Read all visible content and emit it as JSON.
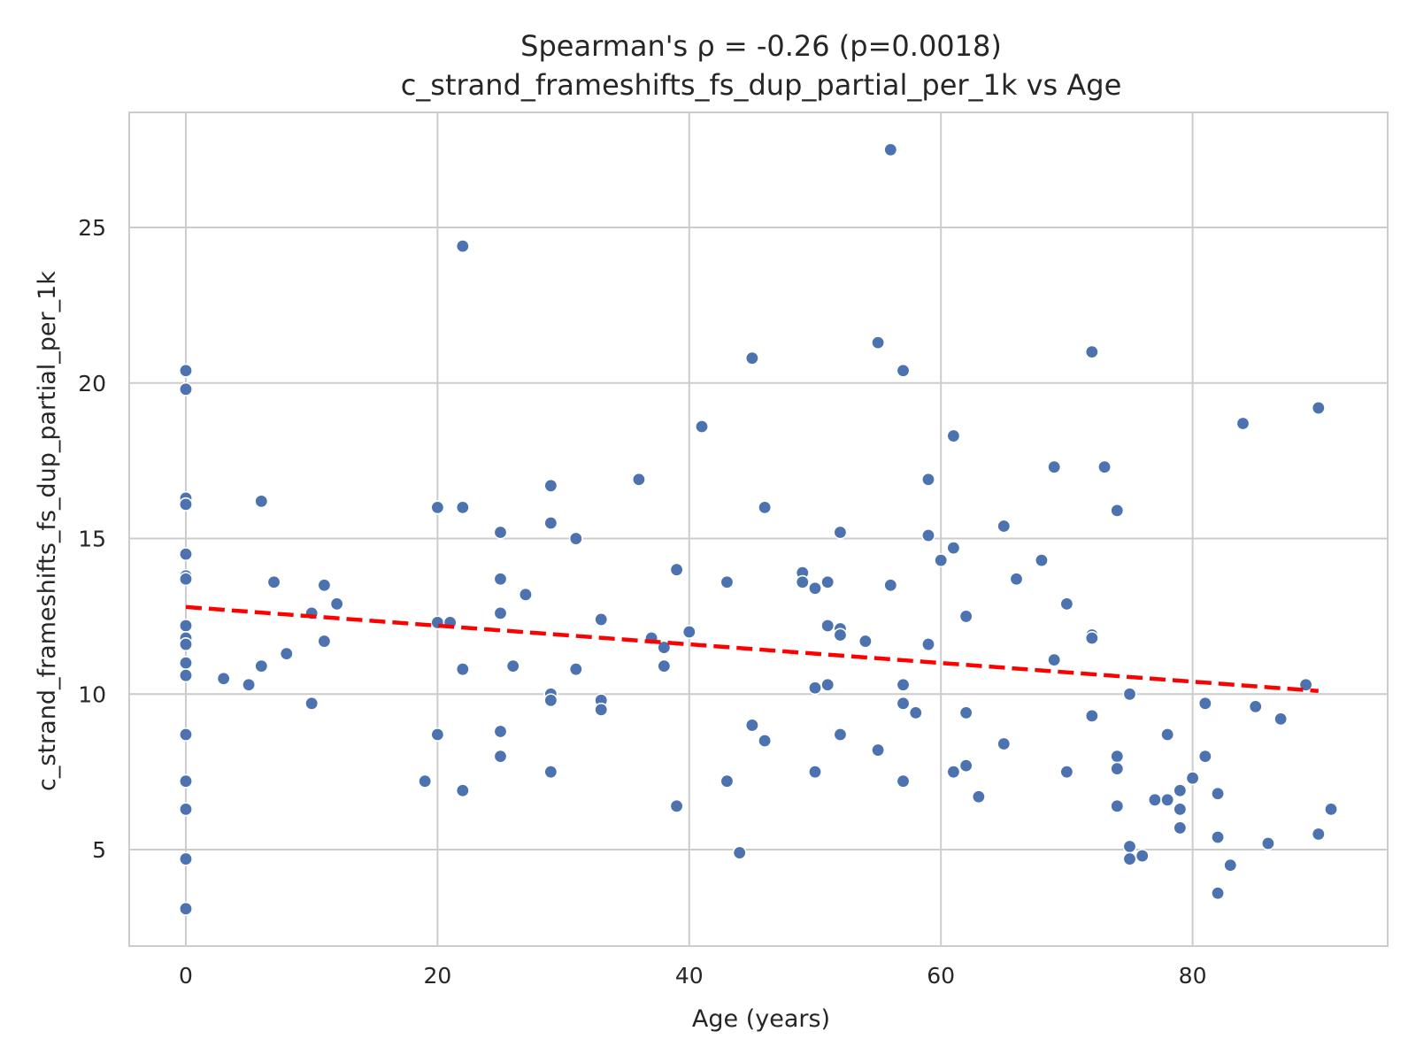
{
  "chart_data": {
    "type": "scatter",
    "title": "Spearman's ρ = -0.26 (p=0.0018)",
    "subtitle": "c_strand_frameshifts_fs_dup_partial_per_1k vs Age",
    "xlabel": "Age (years)",
    "ylabel": "c_strand_frameshifts_fs_dup_partial_per_1k",
    "xlim": [
      -4.5,
      95.5
    ],
    "ylim": [
      1.9,
      28.7
    ],
    "xticks": [
      0,
      20,
      40,
      60,
      80
    ],
    "yticks": [
      5,
      10,
      15,
      20,
      25
    ],
    "grid": true,
    "colors": {
      "points": "#4c72b0",
      "trend": "#ff0000",
      "grid": "#cccccc",
      "frame": "#cccccc"
    },
    "trend_line": {
      "style": "dashed",
      "x": [
        0,
        90
      ],
      "y": [
        12.8,
        10.1
      ]
    },
    "points": [
      [
        0,
        20.4
      ],
      [
        0,
        19.8
      ],
      [
        0,
        16.3
      ],
      [
        0,
        16.1
      ],
      [
        0,
        14.5
      ],
      [
        0,
        13.8
      ],
      [
        0,
        13.7
      ],
      [
        0,
        12.2
      ],
      [
        0,
        11.8
      ],
      [
        0,
        11.6
      ],
      [
        0,
        11.0
      ],
      [
        0,
        10.6
      ],
      [
        0,
        8.7
      ],
      [
        0,
        7.2
      ],
      [
        0,
        6.3
      ],
      [
        0,
        4.7
      ],
      [
        0,
        3.1
      ],
      [
        3,
        10.5
      ],
      [
        5,
        10.3
      ],
      [
        6,
        16.2
      ],
      [
        6,
        10.9
      ],
      [
        7,
        13.6
      ],
      [
        8,
        11.3
      ],
      [
        10,
        12.6
      ],
      [
        10,
        9.7
      ],
      [
        11,
        13.5
      ],
      [
        11,
        11.7
      ],
      [
        12,
        12.9
      ],
      [
        19,
        7.2
      ],
      [
        20,
        16.0
      ],
      [
        20,
        12.3
      ],
      [
        20,
        8.7
      ],
      [
        21,
        12.3
      ],
      [
        22,
        24.4
      ],
      [
        22,
        16.0
      ],
      [
        22,
        10.8
      ],
      [
        22,
        6.9
      ],
      [
        25,
        15.2
      ],
      [
        25,
        13.7
      ],
      [
        25,
        12.6
      ],
      [
        25,
        8.8
      ],
      [
        25,
        8.0
      ],
      [
        26,
        10.9
      ],
      [
        27,
        13.2
      ],
      [
        29,
        16.7
      ],
      [
        29,
        15.5
      ],
      [
        29,
        10.0
      ],
      [
        29,
        9.8
      ],
      [
        29,
        7.5
      ],
      [
        31,
        15.0
      ],
      [
        31,
        10.8
      ],
      [
        33,
        12.4
      ],
      [
        33,
        9.8
      ],
      [
        33,
        9.5
      ],
      [
        36,
        16.9
      ],
      [
        37,
        11.8
      ],
      [
        38,
        11.5
      ],
      [
        38,
        10.9
      ],
      [
        39,
        14.0
      ],
      [
        39,
        6.4
      ],
      [
        40,
        12.0
      ],
      [
        41,
        18.6
      ],
      [
        43,
        13.6
      ],
      [
        43,
        7.2
      ],
      [
        44,
        4.9
      ],
      [
        45,
        20.8
      ],
      [
        45,
        9.0
      ],
      [
        46,
        16.0
      ],
      [
        46,
        8.5
      ],
      [
        49,
        13.9
      ],
      [
        49,
        13.6
      ],
      [
        50,
        13.4
      ],
      [
        50,
        10.2
      ],
      [
        50,
        7.5
      ],
      [
        51,
        13.6
      ],
      [
        51,
        12.2
      ],
      [
        51,
        10.3
      ],
      [
        52,
        15.2
      ],
      [
        52,
        12.1
      ],
      [
        52,
        11.9
      ],
      [
        52,
        8.7
      ],
      [
        54,
        11.7
      ],
      [
        55,
        21.3
      ],
      [
        55,
        8.2
      ],
      [
        56,
        27.5
      ],
      [
        56,
        13.5
      ],
      [
        57,
        20.4
      ],
      [
        57,
        10.3
      ],
      [
        57,
        9.7
      ],
      [
        57,
        7.2
      ],
      [
        58,
        9.4
      ],
      [
        59,
        16.9
      ],
      [
        59,
        15.1
      ],
      [
        59,
        11.6
      ],
      [
        60,
        14.3
      ],
      [
        61,
        18.3
      ],
      [
        61,
        14.7
      ],
      [
        61,
        7.5
      ],
      [
        62,
        12.5
      ],
      [
        62,
        9.4
      ],
      [
        62,
        7.7
      ],
      [
        63,
        6.7
      ],
      [
        65,
        15.4
      ],
      [
        65,
        8.4
      ],
      [
        66,
        13.7
      ],
      [
        68,
        14.3
      ],
      [
        69,
        17.3
      ],
      [
        69,
        11.1
      ],
      [
        70,
        12.9
      ],
      [
        70,
        7.5
      ],
      [
        72,
        21.0
      ],
      [
        72,
        11.9
      ],
      [
        72,
        11.8
      ],
      [
        72,
        9.3
      ],
      [
        73,
        17.3
      ],
      [
        74,
        15.9
      ],
      [
        74,
        8.0
      ],
      [
        74,
        7.6
      ],
      [
        74,
        6.4
      ],
      [
        75,
        10.0
      ],
      [
        75,
        5.1
      ],
      [
        75,
        4.7
      ],
      [
        76,
        4.8
      ],
      [
        77,
        6.6
      ],
      [
        78,
        8.7
      ],
      [
        78,
        6.6
      ],
      [
        79,
        6.9
      ],
      [
        79,
        6.3
      ],
      [
        79,
        5.7
      ],
      [
        80,
        7.3
      ],
      [
        81,
        9.7
      ],
      [
        81,
        8.0
      ],
      [
        82,
        6.8
      ],
      [
        82,
        5.4
      ],
      [
        82,
        3.6
      ],
      [
        83,
        4.5
      ],
      [
        84,
        18.7
      ],
      [
        85,
        9.6
      ],
      [
        86,
        5.2
      ],
      [
        87,
        9.2
      ],
      [
        89,
        10.3
      ],
      [
        90,
        19.2
      ],
      [
        90,
        5.5
      ],
      [
        91,
        6.3
      ]
    ]
  }
}
